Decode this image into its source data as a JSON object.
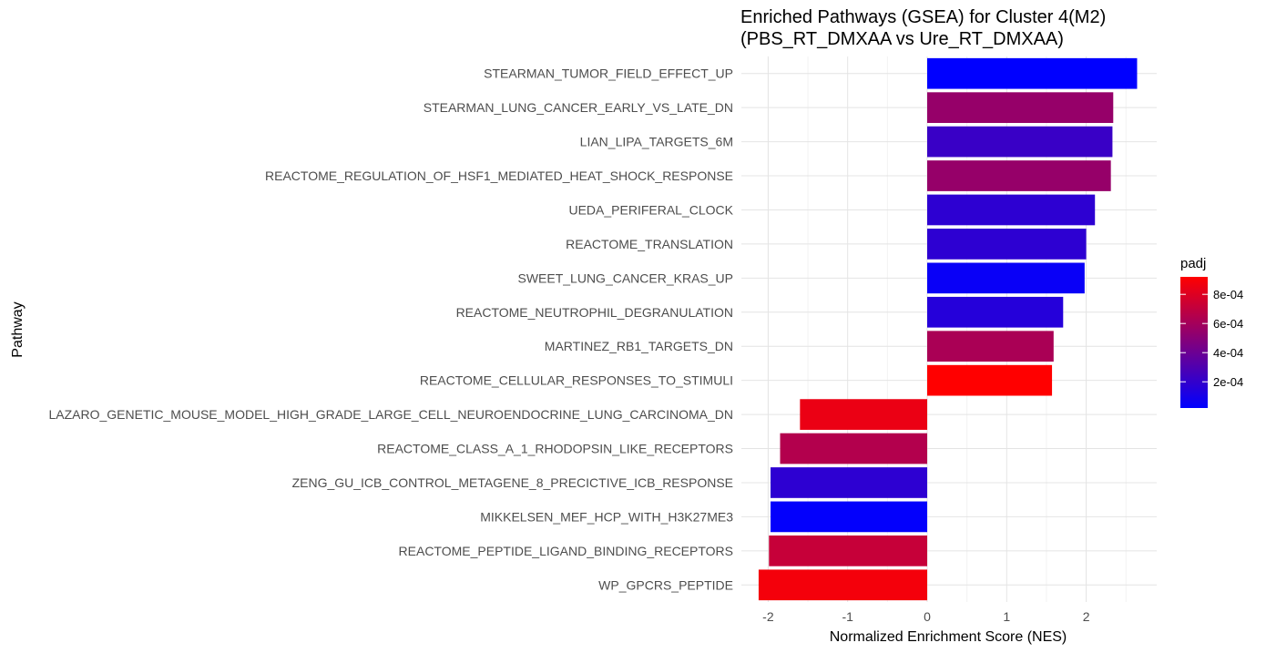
{
  "chart_data": {
    "type": "bar",
    "orientation": "horizontal",
    "title_line1": "Enriched Pathways (GSEA) for Cluster 4(M2)",
    "title_line2": "(PBS_RT_DMXAA vs Ure_RT_DMXAA)",
    "xlabel": "Normalized Enrichment Score (NES)",
    "ylabel": "Pathway",
    "xlim": [
      -2.2,
      2.9
    ],
    "x_ticks": [
      -2,
      -1,
      0,
      1,
      2
    ],
    "x_tick_labels": [
      "-2",
      "-1",
      "0",
      "1",
      "2"
    ],
    "grid": true,
    "legend": {
      "title": "padj",
      "placement": "right",
      "min": 2e-05,
      "max": 0.00092,
      "low_color": "#0000ff",
      "high_color": "#ff0000",
      "ticks": [
        0.0002,
        0.0004,
        0.0006,
        0.0008
      ],
      "tick_labels": [
        "2e-04",
        "4e-04",
        "6e-04",
        "8e-04"
      ]
    },
    "categories": [
      "STEARMAN_TUMOR_FIELD_EFFECT_UP",
      "STEARMAN_LUNG_CANCER_EARLY_VS_LATE_DN",
      "LIAN_LIPA_TARGETS_6M",
      "REACTOME_REGULATION_OF_HSF1_MEDIATED_HEAT_SHOCK_RESPONSE",
      "UEDA_PERIFERAL_CLOCK",
      "REACTOME_TRANSLATION",
      "SWEET_LUNG_CANCER_KRAS_UP",
      "REACTOME_NEUTROPHIL_DEGRANULATION",
      "MARTINEZ_RB1_TARGETS_DN",
      "REACTOME_CELLULAR_RESPONSES_TO_STIMULI",
      "LAZARO_GENETIC_MOUSE_MODEL_HIGH_GRADE_LARGE_CELL_NEUROENDOCRINE_LUNG_CARCINOMA_DN",
      "REACTOME_CLASS_A_1_RHODOPSIN_LIKE_RECEPTORS",
      "ZENG_GU_ICB_CONTROL_METAGENE_8_PRECICTIVE_ICB_RESPONSE",
      "MIKKELSEN_MEF_HCP_WITH_H3K27ME3",
      "REACTOME_PEPTIDE_LIGAND_BINDING_RECEPTORS",
      "WP_GPCRS_PEPTIDE"
    ],
    "values": [
      2.64,
      2.34,
      2.33,
      2.31,
      2.11,
      2.0,
      1.98,
      1.71,
      1.59,
      1.57,
      -1.6,
      -1.85,
      -1.97,
      -1.97,
      -1.99,
      -2.12
    ],
    "padj": [
      2e-05,
      0.00055,
      0.00022,
      0.00055,
      0.00018,
      0.00018,
      5e-05,
      0.00015,
      0.00062,
      0.00092,
      0.00085,
      0.00065,
      0.00018,
      3e-05,
      0.00072,
      0.00088
    ]
  }
}
